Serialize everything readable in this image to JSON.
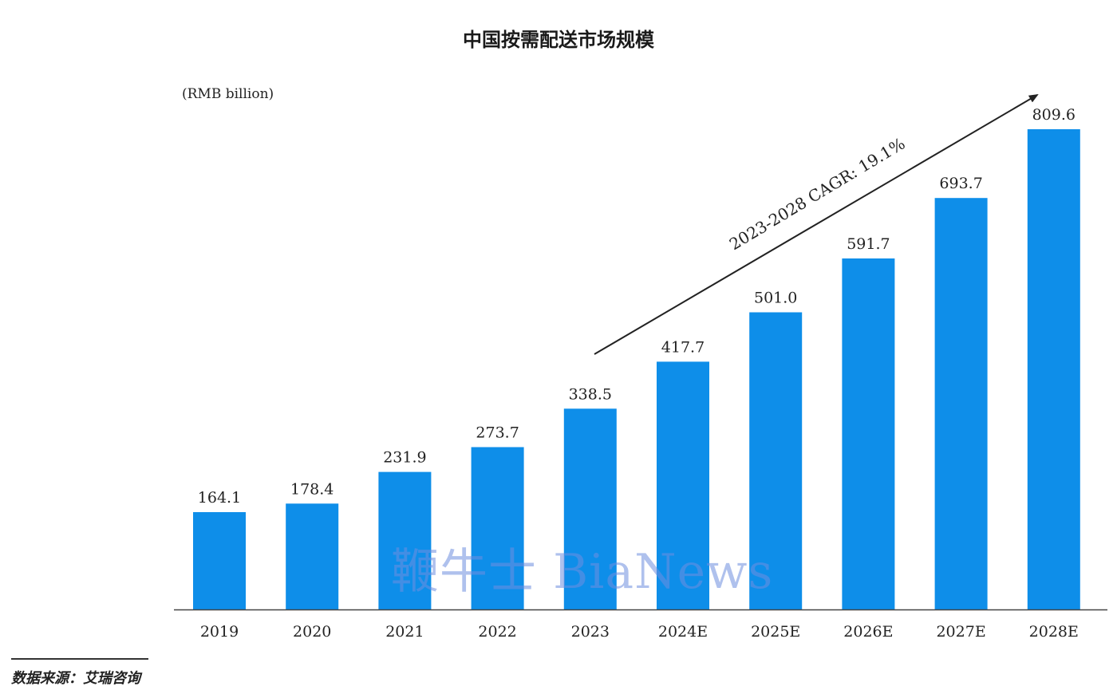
{
  "title": "中国按需配送市场规模",
  "unit_label": "(RMB billion)",
  "annotation": "2023-2028 CAGR: 19.1%",
  "watermark": "鞭牛士 BiaNews",
  "source": "数据来源：艾瑞咨询",
  "colors": {
    "bar": "#0e8ee9",
    "text": "#222222",
    "axis": "#444444"
  },
  "chart_data": {
    "type": "bar",
    "title": "中国按需配送市场规模",
    "ylabel": "(RMB billion)",
    "xlabel": "",
    "categories": [
      "2019",
      "2020",
      "2021",
      "2022",
      "2023",
      "2024E",
      "2025E",
      "2026E",
      "2027E",
      "2028E"
    ],
    "values": [
      164.1,
      178.4,
      231.9,
      273.7,
      338.5,
      417.7,
      501.0,
      591.7,
      693.7,
      809.6
    ],
    "value_labels": [
      "164.1",
      "178.4",
      "231.9",
      "273.7",
      "338.5",
      "417.7",
      "501.0",
      "591.7",
      "693.7",
      "809.6"
    ],
    "ylim": [
      0,
      809.6
    ],
    "grid": false,
    "legend": "none"
  }
}
